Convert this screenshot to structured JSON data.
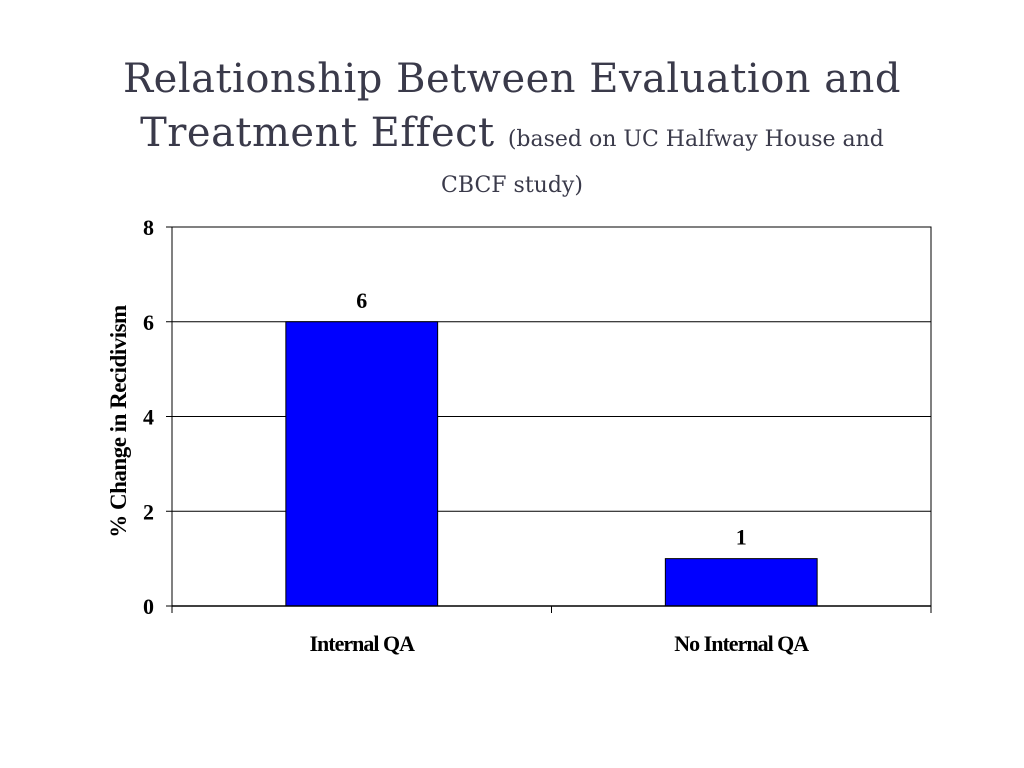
{
  "title": {
    "line1": "Relationship Between Evaluation and",
    "line2_main": "Treatment Effect",
    "subtitle_part1": "(based on UC Halfway House and",
    "subtitle_part2": "CBCF study)"
  },
  "colors": {
    "bar_fill": "#0000ff",
    "bar_stroke": "#000000",
    "grid": "#000000",
    "title_text": "#3a3a4a"
  },
  "chart_data": {
    "type": "bar",
    "title": "Relationship Between Evaluation and Treatment Effect (based on UC Halfway House and CBCF study)",
    "categories": [
      "Internal QA",
      "No Internal QA"
    ],
    "values": [
      6,
      1
    ],
    "data_labels": [
      "6",
      "1"
    ],
    "xlabel": "",
    "ylabel": "% Change in Recidivism",
    "ylim": [
      0,
      8
    ],
    "yticks": [
      0,
      2,
      4,
      6,
      8
    ],
    "ytick_labels": [
      "0",
      "2",
      "4",
      "6",
      "8"
    ],
    "grid": true,
    "legend": "none"
  }
}
